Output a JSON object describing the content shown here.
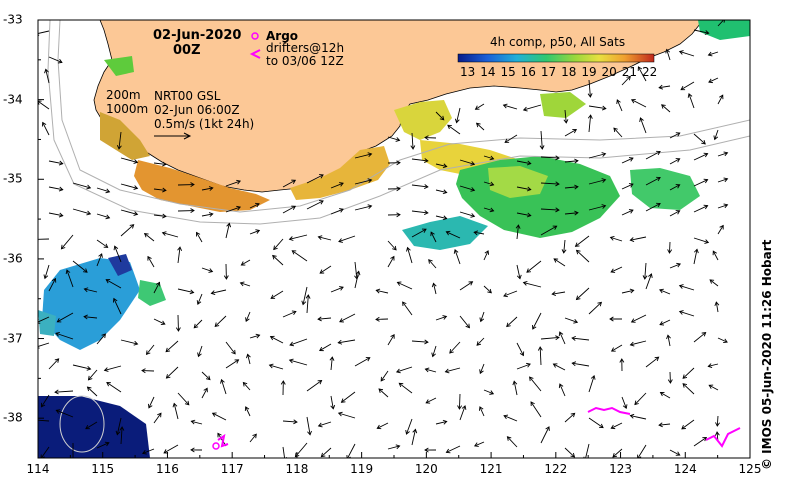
{
  "map": {
    "date_title": "02-Jun-2020",
    "time_title": "00Z",
    "legend_argo": "Argo",
    "legend_drifters_1": "drifters@12h",
    "legend_drifters_2": "to 03/06 12Z",
    "contour_200": "200m",
    "contour_1000": "1000m",
    "product_1": "NRT00 GSL",
    "product_2": "02-Jun 06:00Z",
    "velocity_scale": "0.5m/s (1kt 24h)",
    "colorbar_title": "4h comp, p50, All Sats",
    "colorbar_ticks": [
      "13",
      "14",
      "15",
      "16",
      "17",
      "18",
      "19",
      "20",
      "21",
      "22"
    ],
    "credit": "© IMOS 05-Jun-2020 11:26 Hobart",
    "x_ticks": [
      "114",
      "115",
      "116",
      "117",
      "118",
      "119",
      "120",
      "121",
      "122",
      "123",
      "124",
      "125"
    ],
    "y_ticks": [
      "-33",
      "-34",
      "-35",
      "-36",
      "-37",
      "-38"
    ],
    "colors": {
      "land": "#fcc896",
      "ocean_bg": "#ffffff",
      "argo": "#ff00ff",
      "drifter": "#ff00ff"
    },
    "lon_range": [
      114,
      125
    ],
    "lat_range": [
      -38.5,
      -33
    ]
  }
}
